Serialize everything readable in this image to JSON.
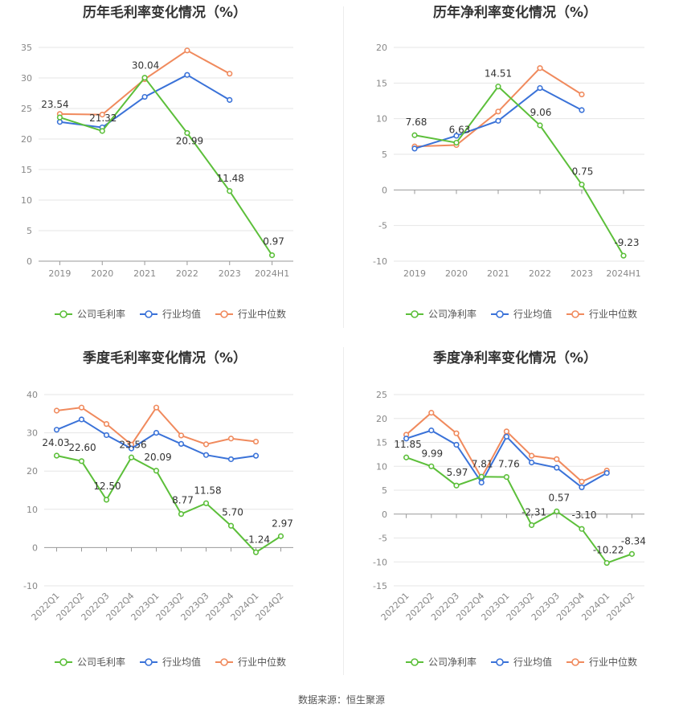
{
  "colors": {
    "company": "#5cbf3a",
    "industry_avg": "#3a72d8",
    "industry_median": "#f08a5d",
    "grid": "#e6e6e6",
    "axis": "#888888",
    "title": "#333333"
  },
  "legend": [
    "公司毛利率",
    "行业均值",
    "行业中位数"
  ],
  "source": "数据来源：恒生聚源",
  "chart_data": [
    {
      "type": "line",
      "title": "历年毛利率变化情况（%）",
      "categories": [
        "2019",
        "2020",
        "2021",
        "2022",
        "2023",
        "2024H1"
      ],
      "ylim": [
        0,
        35
      ],
      "yticks": [
        0,
        5,
        10,
        15,
        20,
        25,
        30,
        35
      ],
      "grid": true,
      "legend": "bottom",
      "rotate_x": false,
      "series": [
        {
          "name": "公司毛利率",
          "color": "#5cbf3a",
          "labels": true,
          "values": [
            23.54,
            21.32,
            30.04,
            20.99,
            11.48,
            0.97
          ]
        },
        {
          "name": "行业均值",
          "color": "#3a72d8",
          "labels": false,
          "values": [
            22.8,
            21.9,
            26.9,
            30.5,
            26.4,
            null
          ]
        },
        {
          "name": "行业中位数",
          "color": "#f08a5d",
          "labels": false,
          "values": [
            24.1,
            24.0,
            29.8,
            34.5,
            30.7,
            null
          ]
        }
      ]
    },
    {
      "type": "line",
      "title": "历年净利率变化情况（%）",
      "categories": [
        "2019",
        "2020",
        "2021",
        "2022",
        "2023",
        "2024H1"
      ],
      "ylim": [
        -10,
        20
      ],
      "yticks": [
        -10,
        -5,
        0,
        5,
        10,
        15,
        20
      ],
      "grid": true,
      "legend": "bottom",
      "rotate_x": false,
      "series": [
        {
          "name": "公司净利率",
          "color": "#5cbf3a",
          "labels": true,
          "values": [
            7.68,
            6.63,
            14.51,
            9.06,
            0.75,
            -9.23
          ]
        },
        {
          "name": "行业均值",
          "color": "#3a72d8",
          "labels": false,
          "values": [
            5.8,
            7.6,
            9.7,
            14.3,
            11.2,
            null
          ]
        },
        {
          "name": "行业中位数",
          "color": "#f08a5d",
          "labels": false,
          "values": [
            6.1,
            6.3,
            11.0,
            17.1,
            13.4,
            null
          ]
        }
      ]
    },
    {
      "type": "line",
      "title": "季度毛利率变化情况（%）",
      "categories": [
        "2022Q1",
        "2022Q2",
        "2022Q3",
        "2022Q4",
        "2023Q1",
        "2023Q2",
        "2023Q3",
        "2023Q4",
        "2024Q1",
        "2024Q2"
      ],
      "ylim": [
        -10,
        40
      ],
      "yticks": [
        -10,
        0,
        10,
        20,
        30,
        40
      ],
      "grid": true,
      "legend": "bottom",
      "rotate_x": true,
      "series": [
        {
          "name": "公司毛利率",
          "color": "#5cbf3a",
          "labels": true,
          "values": [
            24.03,
            22.6,
            12.5,
            23.56,
            20.09,
            8.77,
            11.58,
            5.7,
            -1.24,
            2.97
          ]
        },
        {
          "name": "行业均值",
          "color": "#3a72d8",
          "labels": false,
          "values": [
            30.8,
            33.5,
            29.4,
            25.9,
            30.0,
            27.1,
            24.2,
            23.1,
            24.0,
            null
          ]
        },
        {
          "name": "行业中位数",
          "color": "#f08a5d",
          "labels": false,
          "values": [
            35.8,
            36.6,
            32.3,
            26.9,
            36.6,
            29.3,
            27.0,
            28.5,
            27.7,
            null
          ]
        }
      ]
    },
    {
      "type": "line",
      "title": "季度净利率变化情况（%）",
      "categories": [
        "2022Q1",
        "2022Q2",
        "2022Q3",
        "2022Q4",
        "2023Q1",
        "2023Q2",
        "2023Q3",
        "2023Q4",
        "2024Q1",
        "2024Q2"
      ],
      "ylim": [
        -15,
        25
      ],
      "yticks": [
        -15,
        -10,
        -5,
        0,
        5,
        10,
        15,
        20,
        25
      ],
      "grid": true,
      "legend": "bottom",
      "rotate_x": true,
      "series": [
        {
          "name": "公司净利率",
          "color": "#5cbf3a",
          "labels": true,
          "values": [
            11.85,
            9.99,
            5.97,
            7.81,
            7.76,
            -2.31,
            0.57,
            -3.1,
            -10.22,
            -8.34
          ]
        },
        {
          "name": "行业均值",
          "color": "#3a72d8",
          "labels": false,
          "values": [
            15.8,
            17.5,
            14.5,
            6.6,
            16.2,
            10.8,
            9.7,
            5.6,
            8.6,
            null
          ]
        },
        {
          "name": "行业中位数",
          "color": "#f08a5d",
          "labels": false,
          "values": [
            16.6,
            21.2,
            16.9,
            7.6,
            17.3,
            12.2,
            11.5,
            6.8,
            9.1,
            null
          ]
        }
      ]
    }
  ]
}
